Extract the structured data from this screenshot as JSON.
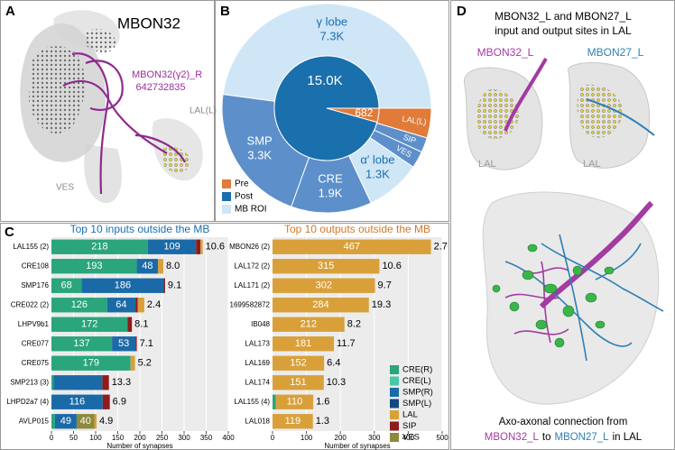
{
  "panels": {
    "a": {
      "label": "A",
      "title": "MBON32",
      "neuron_name": "MBON32(γ2)_R",
      "neuron_id": "642732835",
      "region_labels": [
        "LAL(L)",
        "VES"
      ]
    },
    "b": {
      "label": "B"
    },
    "c": {
      "label": "C"
    },
    "d": {
      "label": "D",
      "title_lines": [
        "MBON32_L and MBON27_L",
        "input and output sites in LAL"
      ],
      "neuron_labels": [
        "MBON32_L",
        "MBON27_L"
      ],
      "region_labels": [
        "LAL",
        "LAL"
      ],
      "caption_line1": "Axo-axonal connection from",
      "caption_line2": [
        "MBON32_L",
        "to",
        "MBON27_L",
        "in LAL"
      ]
    }
  },
  "chart_data": [
    {
      "type": "donut",
      "legend": [
        {
          "name": "Pre",
          "color": "#e07b39"
        },
        {
          "name": "Post",
          "color": "#1a6fad"
        },
        {
          "name": "MB ROI",
          "color": "#cfe6f7"
        }
      ],
      "inner": {
        "values": [
          682,
          15000
        ],
        "value_labels": [
          "682",
          "15.0K"
        ],
        "colors": [
          "#e07b39",
          "#1a6fad"
        ]
      },
      "outer": {
        "categories": [
          "LAL(L)",
          "SIP",
          "VES",
          "α′ lobe",
          "CRE",
          "SMP",
          "γ lobe"
        ],
        "values": [
          700,
          350,
          400,
          1300,
          1900,
          3300,
          7300
        ],
        "value_labels": [
          null,
          null,
          null,
          "1.3K",
          "1.9K",
          "3.3K",
          "7.3K"
        ],
        "colors": [
          "#e07b39",
          "#5d8fcb",
          "#5d8fcb",
          "#cfe6f7",
          "#5d8fcb",
          "#5d8fcb",
          "#cfe6f7"
        ]
      }
    },
    {
      "type": "barh",
      "stacked": true,
      "title": "Top 10 inputs outside the MB",
      "title_color": "#1a6fad",
      "xlabel": "Number of synapses",
      "categories": [
        "LAL155 (2)",
        "CRE108",
        "SMP176",
        "CRE022 (2)",
        "LHPV9b1",
        "CRE077",
        "CRE075",
        "SMP213 (3)",
        "LHPD2a7 (4)",
        "AVLP015"
      ],
      "series": [
        {
          "color": "#2aa57c",
          "values": [
            218,
            193,
            68,
            126,
            172,
            137,
            179,
            5,
            null,
            8
          ],
          "value_labels": [
            "218",
            "193",
            "68",
            "126",
            "172",
            "137",
            "179",
            null,
            null,
            null
          ]
        },
        {
          "color": "#1b6aa8",
          "values": [
            109,
            48,
            186,
            64,
            null,
            53,
            null,
            110,
            116,
            49
          ],
          "value_labels": [
            "109",
            "48",
            "186",
            "64",
            null,
            "53",
            null,
            null,
            "116",
            "49"
          ]
        },
        {
          "color": "#8c8a3c",
          "values": [
            null,
            null,
            null,
            null,
            null,
            null,
            null,
            null,
            null,
            40
          ],
          "value_labels": [
            null,
            null,
            null,
            null,
            null,
            null,
            null,
            null,
            null,
            "40"
          ]
        },
        {
          "color": "#8e1c1c",
          "values": [
            10,
            null,
            3,
            5,
            10,
            3,
            null,
            15,
            16,
            null
          ],
          "value_labels": [
            null,
            null,
            null,
            null,
            null,
            null,
            null,
            null,
            null,
            null
          ]
        },
        {
          "color": "#d9a03a",
          "values": [
            5,
            12,
            null,
            15,
            null,
            null,
            10,
            null,
            null,
            5
          ],
          "value_labels": [
            null,
            null,
            null,
            null,
            null,
            null,
            null,
            null,
            null,
            null
          ]
        }
      ],
      "end_labels": [
        "10.6",
        "8.0",
        "9.1",
        "2.4",
        "8.1",
        "7.1",
        "5.2",
        "13.3",
        "6.9",
        "4.9"
      ],
      "xlim": [
        0,
        400
      ],
      "xticks": [
        0,
        50,
        100,
        150,
        200,
        250,
        300,
        350,
        400
      ],
      "grid": true
    },
    {
      "type": "barh",
      "stacked": true,
      "title": "Top 10 outputs outside the MB",
      "title_color": "#d07a2a",
      "xlabel": "Number of synapses",
      "categories": [
        "MBON26 (2)",
        "LAL172 (2)",
        "LAL171 (2)",
        "1699582872",
        "IB048",
        "LAL173",
        "LAL169",
        "LAL174",
        "LAL155 (4)",
        "LAL018"
      ],
      "series": [
        {
          "name": "CRE(R)",
          "color": "#2aa57c",
          "values": [
            null,
            null,
            null,
            null,
            null,
            null,
            null,
            null,
            10,
            null
          ],
          "value_labels": [
            null,
            null,
            null,
            null,
            null,
            null,
            null,
            null,
            null,
            null
          ]
        },
        {
          "name": "CRE(L)",
          "color": "#46c9a8",
          "values": [
            null,
            null,
            null,
            null,
            null,
            null,
            null,
            null,
            null,
            null
          ],
          "value_labels": [
            null,
            null,
            null,
            null,
            null,
            null,
            null,
            null,
            null,
            null
          ]
        },
        {
          "name": "SMP(R)",
          "color": "#1b6aa8",
          "values": [
            null,
            null,
            null,
            null,
            null,
            null,
            null,
            null,
            null,
            null
          ],
          "value_labels": [
            null,
            null,
            null,
            null,
            null,
            null,
            null,
            null,
            null,
            null
          ]
        },
        {
          "name": "SMP(L)",
          "color": "#144a80",
          "values": [
            null,
            null,
            null,
            null,
            null,
            null,
            null,
            null,
            null,
            null
          ],
          "value_labels": [
            null,
            null,
            null,
            null,
            null,
            null,
            null,
            null,
            null,
            null
          ]
        },
        {
          "name": "LAL",
          "color": "#d9a03a",
          "values": [
            467,
            315,
            302,
            284,
            212,
            181,
            152,
            151,
            110,
            119
          ],
          "value_labels": [
            "467",
            "315",
            "302",
            "284",
            "212",
            "181",
            "152",
            "151",
            "110",
            "119"
          ]
        },
        {
          "name": "SIP",
          "color": "#8e1c1c",
          "values": [
            null,
            null,
            null,
            null,
            null,
            null,
            null,
            null,
            null,
            null
          ],
          "value_labels": [
            null,
            null,
            null,
            null,
            null,
            null,
            null,
            null,
            null,
            null
          ]
        },
        {
          "name": "VES",
          "color": "#8c8a3c",
          "values": [
            null,
            null,
            null,
            null,
            null,
            null,
            null,
            null,
            null,
            null
          ],
          "value_labels": [
            null,
            null,
            null,
            null,
            null,
            null,
            null,
            null,
            null,
            null
          ]
        }
      ],
      "end_labels": [
        "2.7",
        "10.6",
        "9.7",
        "19.3",
        "8.2",
        "11.7",
        "6.4",
        "10.3",
        "1.6",
        "1.3"
      ],
      "xlim": [
        0,
        500
      ],
      "xticks": [
        0,
        100,
        200,
        300,
        400,
        500
      ],
      "grid": true
    }
  ]
}
